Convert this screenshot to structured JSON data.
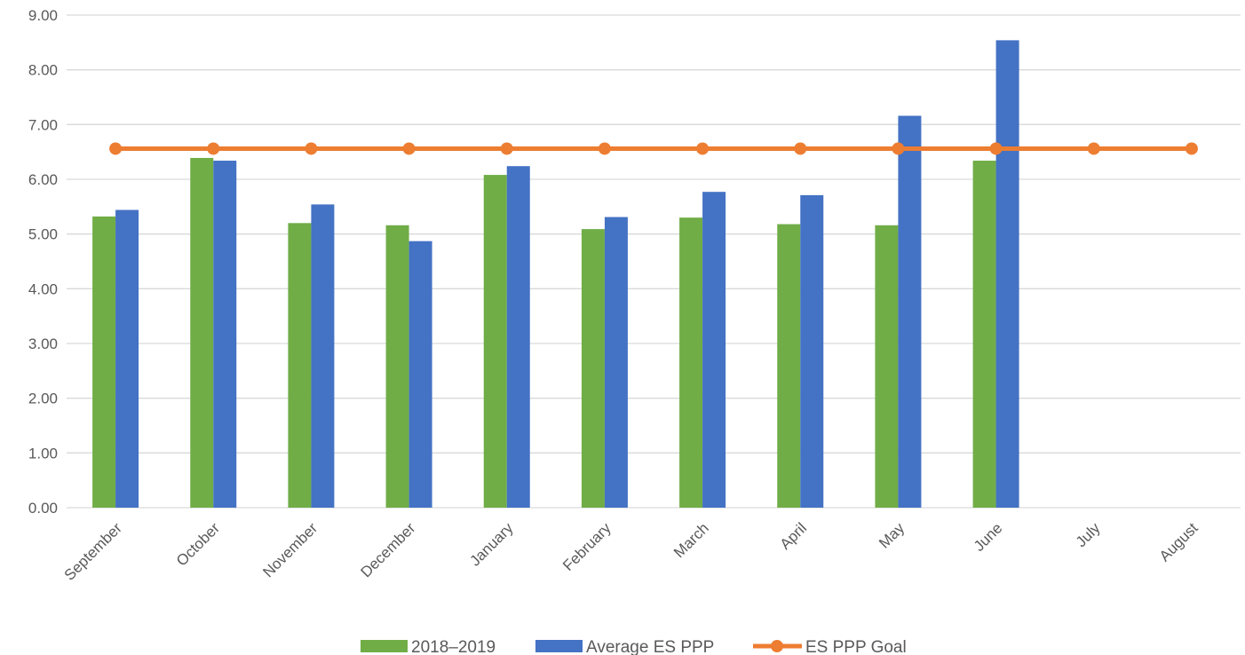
{
  "chart_data": {
    "type": "bar",
    "title": "",
    "xlabel": "",
    "ylabel": "",
    "categories": [
      "September",
      "October",
      "November",
      "December",
      "January",
      "February",
      "March",
      "April",
      "May",
      "June",
      "July",
      "August"
    ],
    "ylim": [
      0,
      9
    ],
    "yticks": [
      0,
      1,
      2,
      3,
      4,
      5,
      6,
      7,
      8,
      9
    ],
    "ytick_labels": [
      "0.00",
      "1.00",
      "2.00",
      "3.00",
      "4.00",
      "5.00",
      "6.00",
      "7.00",
      "8.00",
      "9.00"
    ],
    "grid": true,
    "legend_position": "bottom",
    "series": [
      {
        "name": "2018–2019",
        "type": "bar",
        "color": "#70AD47",
        "values": [
          5.32,
          6.39,
          5.2,
          5.16,
          6.08,
          5.09,
          5.3,
          5.18,
          5.16,
          6.34,
          null,
          null
        ]
      },
      {
        "name": "Average ES PPP",
        "type": "bar",
        "color": "#4472C4",
        "values": [
          5.44,
          6.34,
          5.54,
          4.87,
          6.24,
          5.31,
          5.77,
          5.71,
          7.16,
          8.54,
          null,
          null
        ]
      },
      {
        "name": "ES PPP Goal",
        "type": "line",
        "color": "#ED7D31",
        "marker": "circle",
        "values": [
          6.56,
          6.56,
          6.56,
          6.56,
          6.56,
          6.56,
          6.56,
          6.56,
          6.56,
          6.56,
          6.56,
          6.56
        ]
      }
    ]
  }
}
